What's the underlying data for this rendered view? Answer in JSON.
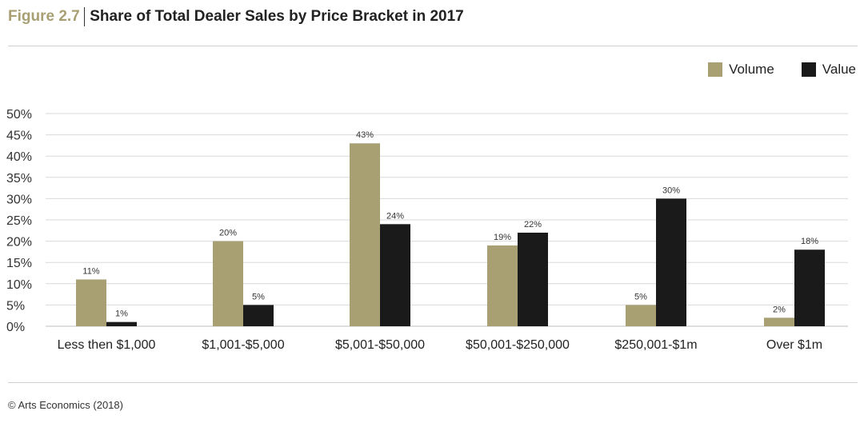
{
  "header": {
    "figure_label": "Figure 2.7",
    "title": "Share of Total Dealer Sales by Price Bracket in 2017"
  },
  "footer": {
    "source": "© Arts Economics (2018)"
  },
  "colors": {
    "volume": "#a89f73",
    "value": "#1a1a1a",
    "grid": "#d9d9d9",
    "figure_label": "#a89f73"
  },
  "chart_data": {
    "type": "bar",
    "title": "Share of Total Dealer Sales by Price Bracket in 2017",
    "xlabel": "",
    "ylabel": "",
    "ylim": [
      0,
      50
    ],
    "y_ticks": [
      0,
      5,
      10,
      15,
      20,
      25,
      30,
      35,
      40,
      45,
      50
    ],
    "y_tick_labels": [
      "0%",
      "5%",
      "10%",
      "15%",
      "20%",
      "25%",
      "30%",
      "35%",
      "40%",
      "45%",
      "50%"
    ],
    "grid": true,
    "legend_position": "top-right",
    "categories": [
      "Less then $1,000",
      "$1,001-$5,000",
      "$5,001-$50,000",
      "$50,001-$250,000",
      "$250,001-$1m",
      "Over $1m"
    ],
    "series": [
      {
        "name": "Volume",
        "values": [
          11,
          20,
          43,
          19,
          5,
          2
        ],
        "labels": [
          "11%",
          "20%",
          "43%",
          "19%",
          "5%",
          "2%"
        ]
      },
      {
        "name": "Value",
        "values": [
          1,
          5,
          24,
          22,
          30,
          18
        ],
        "labels": [
          "1%",
          "5%",
          "24%",
          "22%",
          "30%",
          "18%"
        ]
      }
    ]
  }
}
